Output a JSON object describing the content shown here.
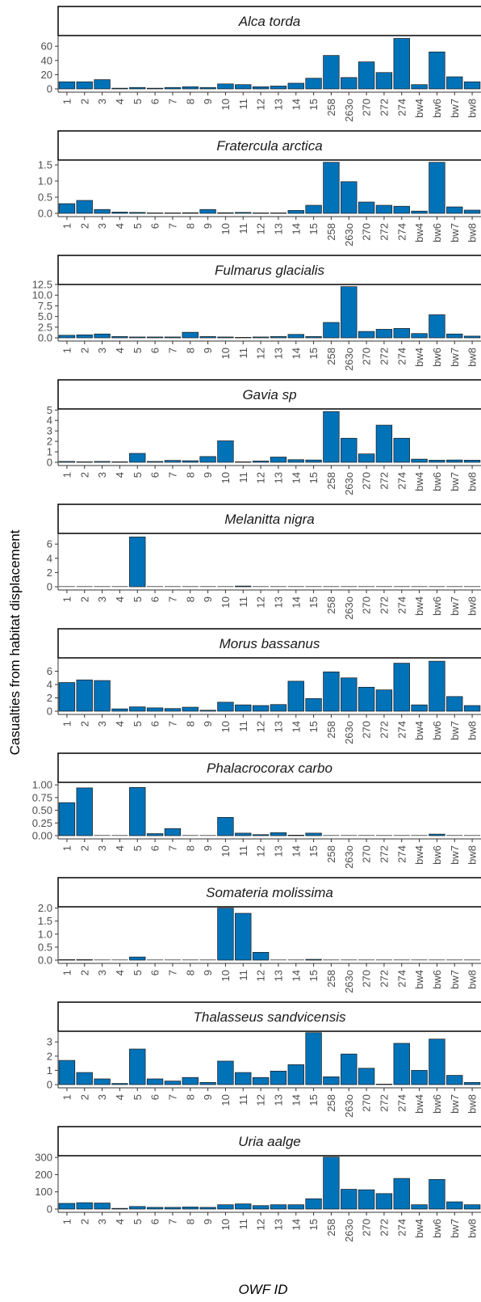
{
  "chart_data": {
    "type": "bar",
    "xlabel": "OWF ID",
    "ylabel": "Casualties from habitat displacement",
    "categories": [
      "1",
      "2",
      "3",
      "4",
      "5",
      "6",
      "7",
      "8",
      "9",
      "10",
      "11",
      "12",
      "13",
      "14",
      "15",
      "258",
      "263o",
      "270",
      "272",
      "274",
      "bw4",
      "bw6",
      "bw7",
      "bw8"
    ],
    "colors": {
      "bar": "#0072b8",
      "bar_edge": "#1a1a1a",
      "strip_border": "#000000",
      "tick": "#4d4d4d"
    },
    "panels": [
      {
        "title": "Alca torda",
        "yticks": [
          0,
          20,
          40,
          60
        ],
        "ylim": [
          0,
          75
        ],
        "values": [
          10,
          10,
          13,
          1,
          2,
          1,
          2,
          3,
          2,
          7,
          6,
          3,
          4,
          8,
          15,
          47,
          16,
          38,
          23,
          71,
          6,
          52,
          17,
          10
        ]
      },
      {
        "title": "Fratercula arctica",
        "yticks": [
          0,
          0.5,
          1.0,
          1.5
        ],
        "ytick_labels": [
          "0.0",
          "0.5",
          "1.0",
          "1.5"
        ],
        "ylim": [
          0,
          1.65
        ],
        "values": [
          0.3,
          0.4,
          0.12,
          0.04,
          0.03,
          0.01,
          0.01,
          0.02,
          0.12,
          0.02,
          0.03,
          0.01,
          0.01,
          0.09,
          0.25,
          1.58,
          0.98,
          0.35,
          0.25,
          0.22,
          0.07,
          1.58,
          0.2,
          0.1
        ]
      },
      {
        "title": "Fulmarus glacialis",
        "yticks": [
          0,
          2.5,
          5.0,
          7.5,
          10.0,
          12.5
        ],
        "ytick_labels": [
          "0.0",
          "2.5",
          "5.0",
          "7.5",
          "10.0",
          "12.5"
        ],
        "ylim": [
          0,
          12.5
        ],
        "values": [
          0.6,
          0.7,
          0.9,
          0.3,
          0.2,
          0.2,
          0.2,
          1.3,
          0.3,
          0.2,
          0.1,
          0.2,
          0.3,
          0.8,
          0.3,
          3.6,
          12.0,
          1.5,
          2.0,
          2.2,
          1.0,
          5.4,
          0.9,
          0.4
        ]
      },
      {
        "title": "Gavia sp",
        "yticks": [
          0,
          1,
          2,
          3,
          4,
          5
        ],
        "ylim": [
          0,
          5.1
        ],
        "values": [
          0.08,
          0.04,
          0.08,
          0.02,
          0.85,
          0.08,
          0.18,
          0.15,
          0.55,
          2.05,
          0.04,
          0.12,
          0.5,
          0.25,
          0.22,
          4.85,
          2.3,
          0.8,
          3.55,
          2.3,
          0.3,
          0.2,
          0.22,
          0.2
        ]
      },
      {
        "title": "Melanitta nigra",
        "yticks": [
          0,
          2,
          4,
          6
        ],
        "ylim": [
          0,
          7.5
        ],
        "values": [
          0,
          0,
          0,
          0,
          7.0,
          0,
          0,
          0,
          0,
          0,
          0.1,
          0,
          0,
          0,
          0,
          0,
          0,
          0,
          0,
          0,
          0,
          0,
          0,
          0
        ]
      },
      {
        "title": "Morus bassanus",
        "yticks": [
          0,
          2,
          4,
          6
        ],
        "ylim": [
          0,
          8
        ],
        "values": [
          4.3,
          4.7,
          4.6,
          0.35,
          0.65,
          0.5,
          0.4,
          0.6,
          0.15,
          1.35,
          0.95,
          0.85,
          1.0,
          4.5,
          1.9,
          5.9,
          5.0,
          3.6,
          3.2,
          7.2,
          0.95,
          7.5,
          2.2,
          0.85
        ]
      },
      {
        "title": "Phalacrocorax carbo",
        "yticks": [
          0,
          0.25,
          0.5,
          0.75,
          1.0
        ],
        "ytick_labels": [
          "0.00",
          "0.25",
          "0.50",
          "0.75",
          "1.00"
        ],
        "ylim": [
          0,
          1.05
        ],
        "values": [
          0.65,
          0.94,
          0,
          0,
          0.95,
          0.04,
          0.14,
          0,
          0,
          0.36,
          0.05,
          0.02,
          0.06,
          0.01,
          0.05,
          0,
          0,
          0,
          0,
          0,
          0,
          0.03,
          0,
          0
        ]
      },
      {
        "title": "Somateria molissima",
        "yticks": [
          0,
          0.5,
          1.0,
          1.5,
          2.0
        ],
        "ytick_labels": [
          "0.0",
          "0.5",
          "1.0",
          "1.5",
          "2.0"
        ],
        "ylim": [
          0,
          2.05
        ],
        "values": [
          0.02,
          0.02,
          0,
          0,
          0.12,
          0,
          0,
          0,
          0,
          2.0,
          1.8,
          0.3,
          0,
          0,
          0.03,
          0,
          0,
          0,
          0,
          0,
          0,
          0,
          0,
          0
        ]
      },
      {
        "title": "Thalasseus sandvicensis",
        "yticks": [
          0,
          1,
          2,
          3
        ],
        "ylim": [
          0,
          3.75
        ],
        "values": [
          1.7,
          0.85,
          0.4,
          0.08,
          2.5,
          0.4,
          0.25,
          0.5,
          0.15,
          1.65,
          0.85,
          0.5,
          0.95,
          1.4,
          3.65,
          0.55,
          2.15,
          1.15,
          0.02,
          2.9,
          1.0,
          3.2,
          0.65,
          0.15
        ]
      },
      {
        "title": "Uria aalge",
        "yticks": [
          0,
          100,
          200,
          300
        ],
        "ylim": [
          0,
          310
        ],
        "values": [
          33,
          37,
          35,
          4,
          15,
          10,
          10,
          12,
          10,
          25,
          30,
          20,
          25,
          25,
          60,
          302,
          115,
          112,
          90,
          178,
          25,
          172,
          42,
          25
        ]
      }
    ]
  }
}
